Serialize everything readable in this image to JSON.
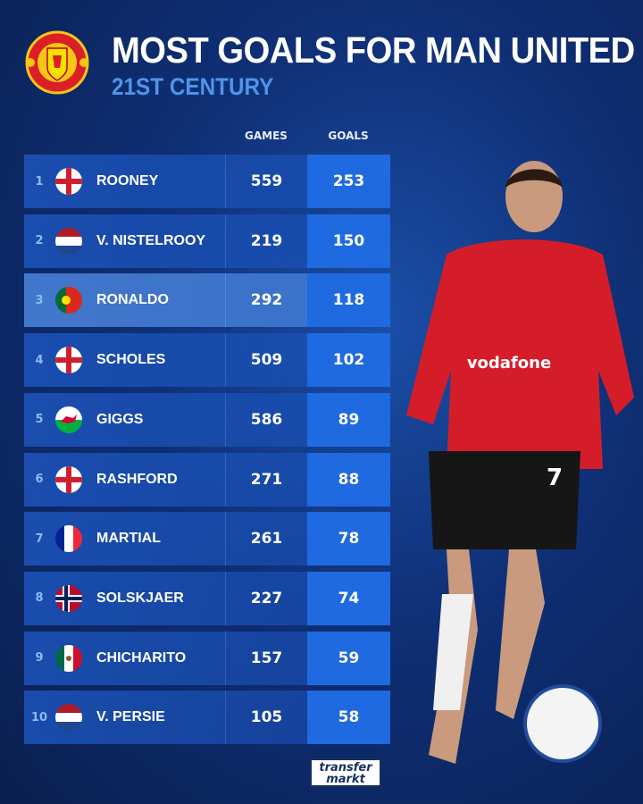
{
  "header": {
    "title": "MOST GOALS FOR MAN UNITED",
    "subtitle": "21ST CENTURY",
    "logo_text": "MANCHESTER UNITED"
  },
  "columns": {
    "games": "GAMES",
    "goals": "GOALS"
  },
  "colors": {
    "accent": "#4f95ea",
    "goals_column": "#1f6ae0",
    "background": "#0f2f75"
  },
  "rows": [
    {
      "rank": "1",
      "flag": "england",
      "name": "ROONEY",
      "games": "559",
      "goals": "253"
    },
    {
      "rank": "2",
      "flag": "netherlands",
      "name": "V. NISTELROOY",
      "games": "219",
      "goals": "150"
    },
    {
      "rank": "3",
      "flag": "portugal",
      "name": "RONALDO",
      "games": "292",
      "goals": "118",
      "highlighted": true
    },
    {
      "rank": "4",
      "flag": "england",
      "name": "SCHOLES",
      "games": "509",
      "goals": "102"
    },
    {
      "rank": "5",
      "flag": "wales",
      "name": "GIGGS",
      "games": "586",
      "goals": "89"
    },
    {
      "rank": "6",
      "flag": "england",
      "name": "RASHFORD",
      "games": "271",
      "goals": "88"
    },
    {
      "rank": "7",
      "flag": "france",
      "name": "MARTIAL",
      "games": "261",
      "goals": "78"
    },
    {
      "rank": "8",
      "flag": "norway",
      "name": "SOLSKJAER",
      "games": "227",
      "goals": "74"
    },
    {
      "rank": "9",
      "flag": "mexico",
      "name": "CHICHARITO",
      "games": "157",
      "goals": "59"
    },
    {
      "rank": "10",
      "flag": "netherlands",
      "name": "V. PERSIE",
      "games": "105",
      "goals": "58"
    }
  ],
  "player": {
    "shirt_sponsor": "vodafone",
    "shirt_number": "7"
  },
  "footer": {
    "brand_line1": "transfer",
    "brand_line2": "markt"
  }
}
